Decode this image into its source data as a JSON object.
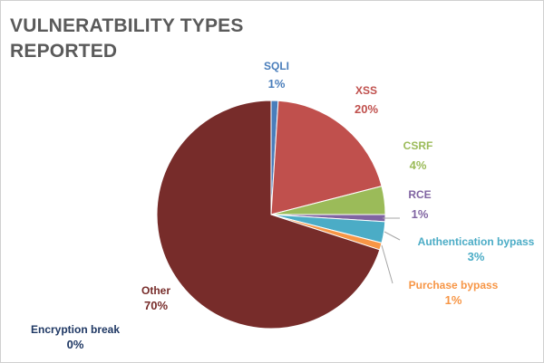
{
  "chart_data": {
    "type": "pie",
    "title": "VULNERATBILITY TYPES REPORTED",
    "start_angle_deg": 0,
    "direction": "clockwise",
    "slices": [
      {
        "label": "SQLI",
        "value_text": "1%",
        "value": 1,
        "color": "#4a7ebb"
      },
      {
        "label": "XSS",
        "value_text": "20%",
        "value": 20,
        "color": "#c0504d"
      },
      {
        "label": "CSRF",
        "value_text": "4%",
        "value": 4,
        "color": "#9bbb59"
      },
      {
        "label": "RCE",
        "value_text": "1%",
        "value": 1,
        "color": "#8064a2"
      },
      {
        "label": "Authentication bypass",
        "value_text": "3%",
        "value": 3,
        "color": "#4bacc6"
      },
      {
        "label": "Purchase bypass",
        "value_text": "1%",
        "value": 1,
        "color": "#f79646"
      },
      {
        "label": "Encryption break",
        "value_text": "0%",
        "value": 0,
        "color": "#1f3864"
      },
      {
        "label": "Other",
        "value_text": "70%",
        "value": 70,
        "color": "#772c2a"
      }
    ],
    "label_colors": {
      "SQLI": "#4a7ebb",
      "XSS": "#c0504d",
      "CSRF": "#9bbb59",
      "RCE": "#8064a2",
      "Authentication bypass": "#4bacc6",
      "Purchase bypass": "#f79646",
      "Encryption break": "#1f3864",
      "Other": "#772c2a"
    }
  }
}
